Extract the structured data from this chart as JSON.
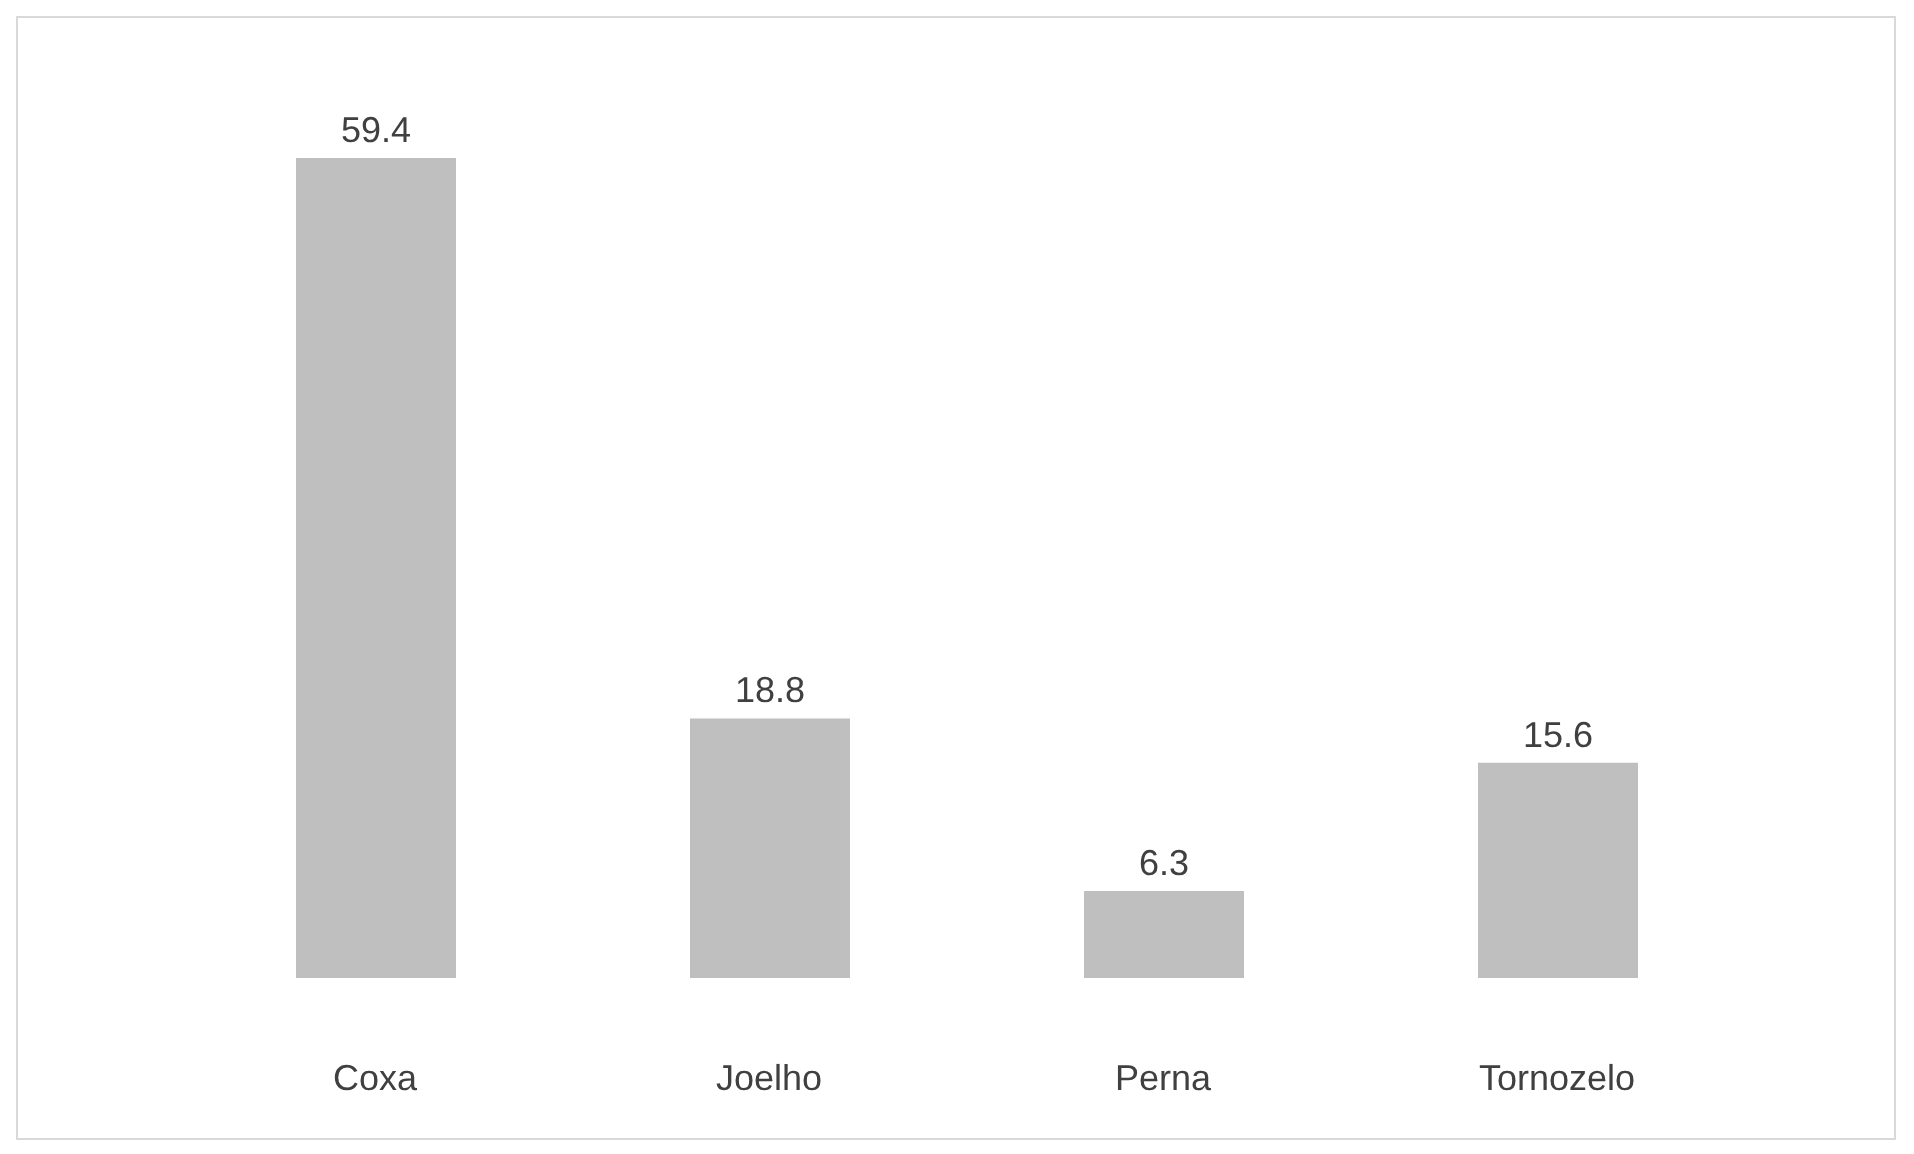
{
  "chart_data": {
    "type": "bar",
    "categories": [
      "Coxa",
      "Joelho",
      "Perna",
      "Tornozelo"
    ],
    "values": [
      59.4,
      18.8,
      6.3,
      15.6
    ],
    "color": "#bfbfbf",
    "data_labels": true
  }
}
